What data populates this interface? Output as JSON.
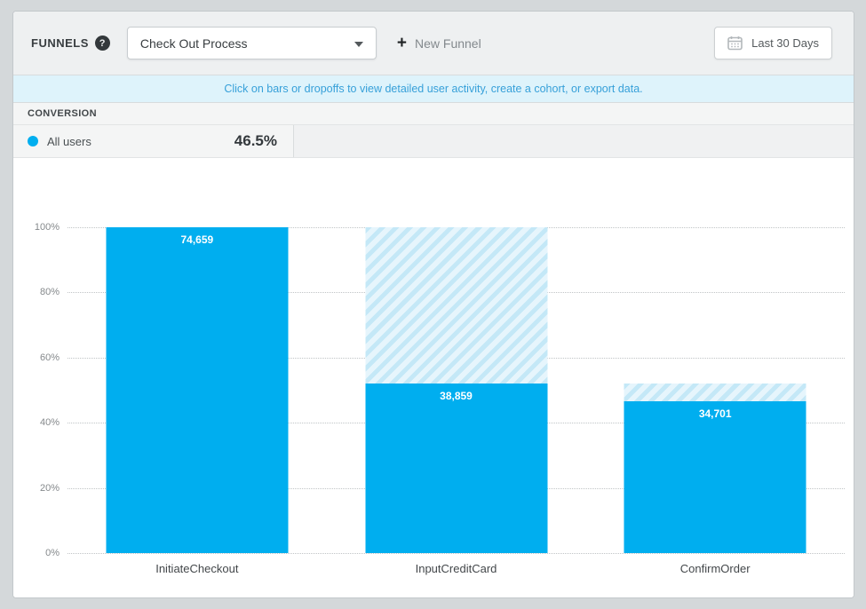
{
  "header": {
    "section_label": "FUNNELS",
    "help_glyph": "?",
    "funnel_selector": {
      "value": "Check Out Process"
    },
    "plus_glyph": "+",
    "new_funnel_label": "New Funnel",
    "date_range_label": "Last 30 Days"
  },
  "banner": {
    "message": "Click on bars or dropoffs to view detailed user activity, create a cohort, or export data."
  },
  "conversion": {
    "section_label": "CONVERSION",
    "legend": {
      "name": "All users",
      "rate": "46.5%"
    }
  },
  "colors": {
    "bar": "#00aeef",
    "hatch_dark": "#c4e8f7",
    "hatch_light": "#e6f5fc",
    "banner_bg": "#def3fb",
    "banner_text": "#37a0d9"
  },
  "chart_data": {
    "type": "bar",
    "title": "",
    "categories": [
      "InitiateCheckout",
      "InputCreditCard",
      "ConfirmOrder"
    ],
    "series": [
      {
        "name": "All users",
        "values": [
          74659,
          38859,
          34701
        ]
      }
    ],
    "value_labels": [
      "74,659",
      "38,859",
      "34,701"
    ],
    "normalization": "percent_of_first_step",
    "dropoff_hatch": "diagonal stripes from previous step level down to current step level",
    "y_ticks": [
      "100%",
      "80%",
      "60%",
      "40%",
      "20%",
      "0%"
    ],
    "ylim": [
      0,
      100
    ],
    "xlabel": "",
    "ylabel": "",
    "grid": "horizontal-dotted",
    "legend_position": "none"
  }
}
